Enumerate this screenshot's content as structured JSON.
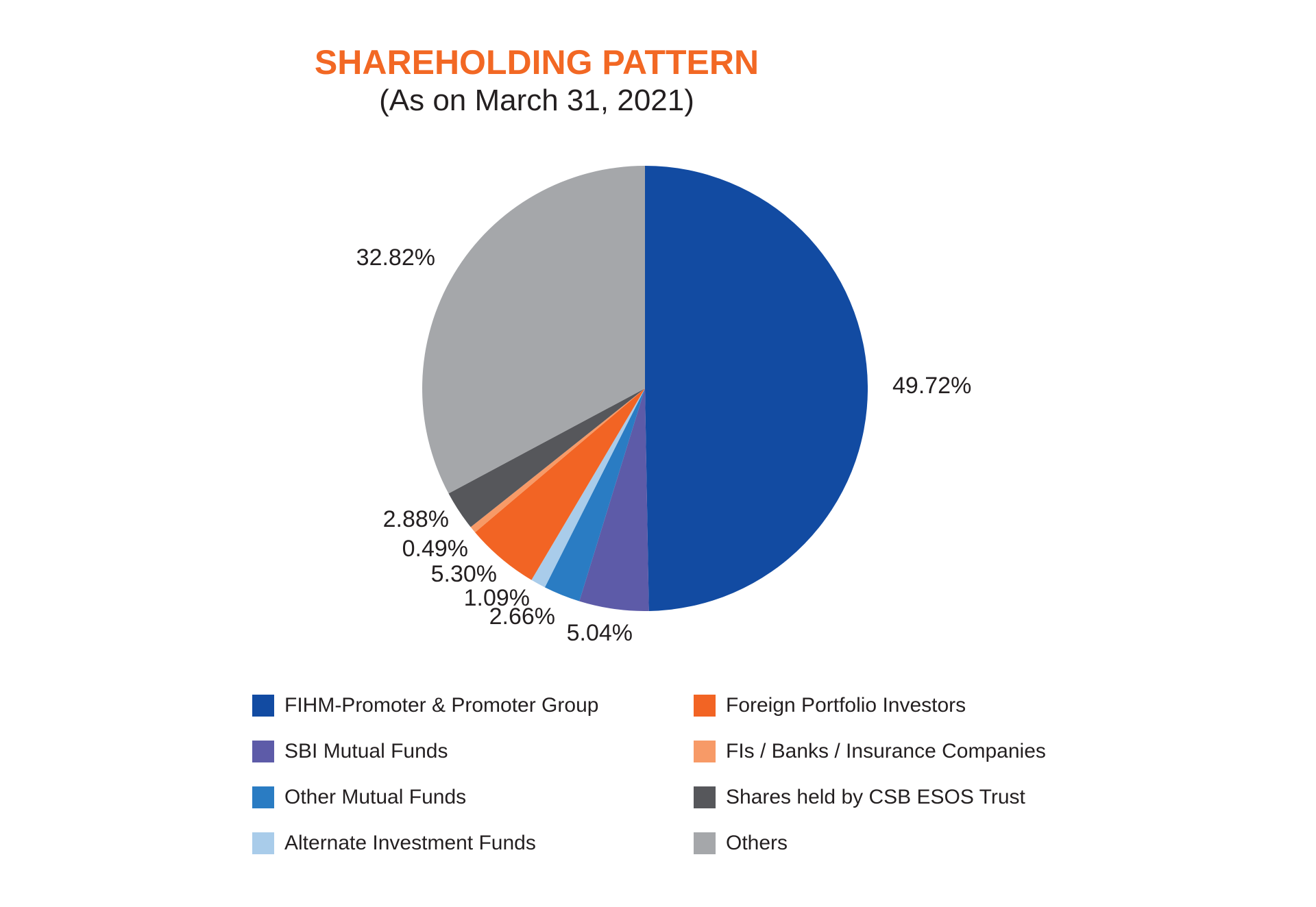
{
  "title": "SHAREHOLDING PATTERN",
  "subtitle": "(As on March 31, 2021)",
  "colors": {
    "title": "#F26824",
    "text": "#231F20",
    "background": "#FFFFFF"
  },
  "chart_data": {
    "type": "pie",
    "title": "SHAREHOLDING PATTERN",
    "subtitle": "(As on March 31, 2021)",
    "start_angle_deg": 0,
    "direction": "clockwise",
    "legend_position": "bottom",
    "slices": [
      {
        "label": "FIHM-Promoter & Promoter Group",
        "value": 49.72,
        "display": "49.72%",
        "color": "#124BA2"
      },
      {
        "label": "SBI Mutual Funds",
        "value": 5.04,
        "display": "5.04%",
        "color": "#5D5BA8"
      },
      {
        "label": "Other Mutual Funds",
        "value": 2.66,
        "display": "2.66%",
        "color": "#2A7CC3"
      },
      {
        "label": "Alternate Investment Funds",
        "value": 1.09,
        "display": "1.09%",
        "color": "#A9CCEA"
      },
      {
        "label": "Foreign Portfolio Investors",
        "value": 5.3,
        "display": "5.30%",
        "color": "#F26424"
      },
      {
        "label": "FIs / Banks / Insurance Companies",
        "value": 0.49,
        "display": "0.49%",
        "color": "#F79A67"
      },
      {
        "label": "Shares held by CSB ESOS Trust",
        "value": 2.88,
        "display": "2.88%",
        "color": "#56575B"
      },
      {
        "label": "Others",
        "value": 32.82,
        "display": "32.82%",
        "color": "#A5A7AA"
      }
    ],
    "legend_columns": [
      [
        0,
        1,
        2,
        3
      ],
      [
        4,
        5,
        6,
        7
      ]
    ]
  }
}
